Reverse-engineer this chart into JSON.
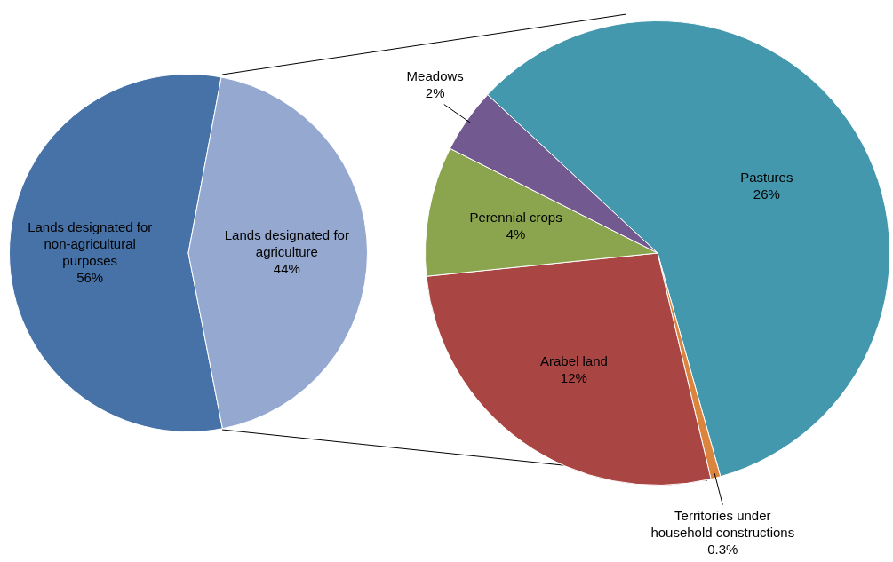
{
  "chart_data": [
    {
      "type": "pie",
      "categories": [
        "Lands designated for non-agricultural purposes",
        "Lands designated for agriculture"
      ],
      "values": [
        56,
        44
      ],
      "colors": [
        "#4672a8",
        "#95a9d0"
      ],
      "value_labels": [
        "56%",
        "44%"
      ]
    },
    {
      "type": "pie",
      "categories": [
        "Pastures",
        "Territories under household constructions",
        "Arabel land",
        "Perennial crops",
        "Meadows"
      ],
      "values": [
        26,
        0.3,
        12,
        4,
        2
      ],
      "colors": [
        "#4398ae",
        "#db843d",
        "#a94643",
        "#8ba54f",
        "#725990"
      ],
      "value_labels": [
        "26%",
        "0.3%",
        "12%",
        "4%",
        "2%"
      ]
    }
  ]
}
